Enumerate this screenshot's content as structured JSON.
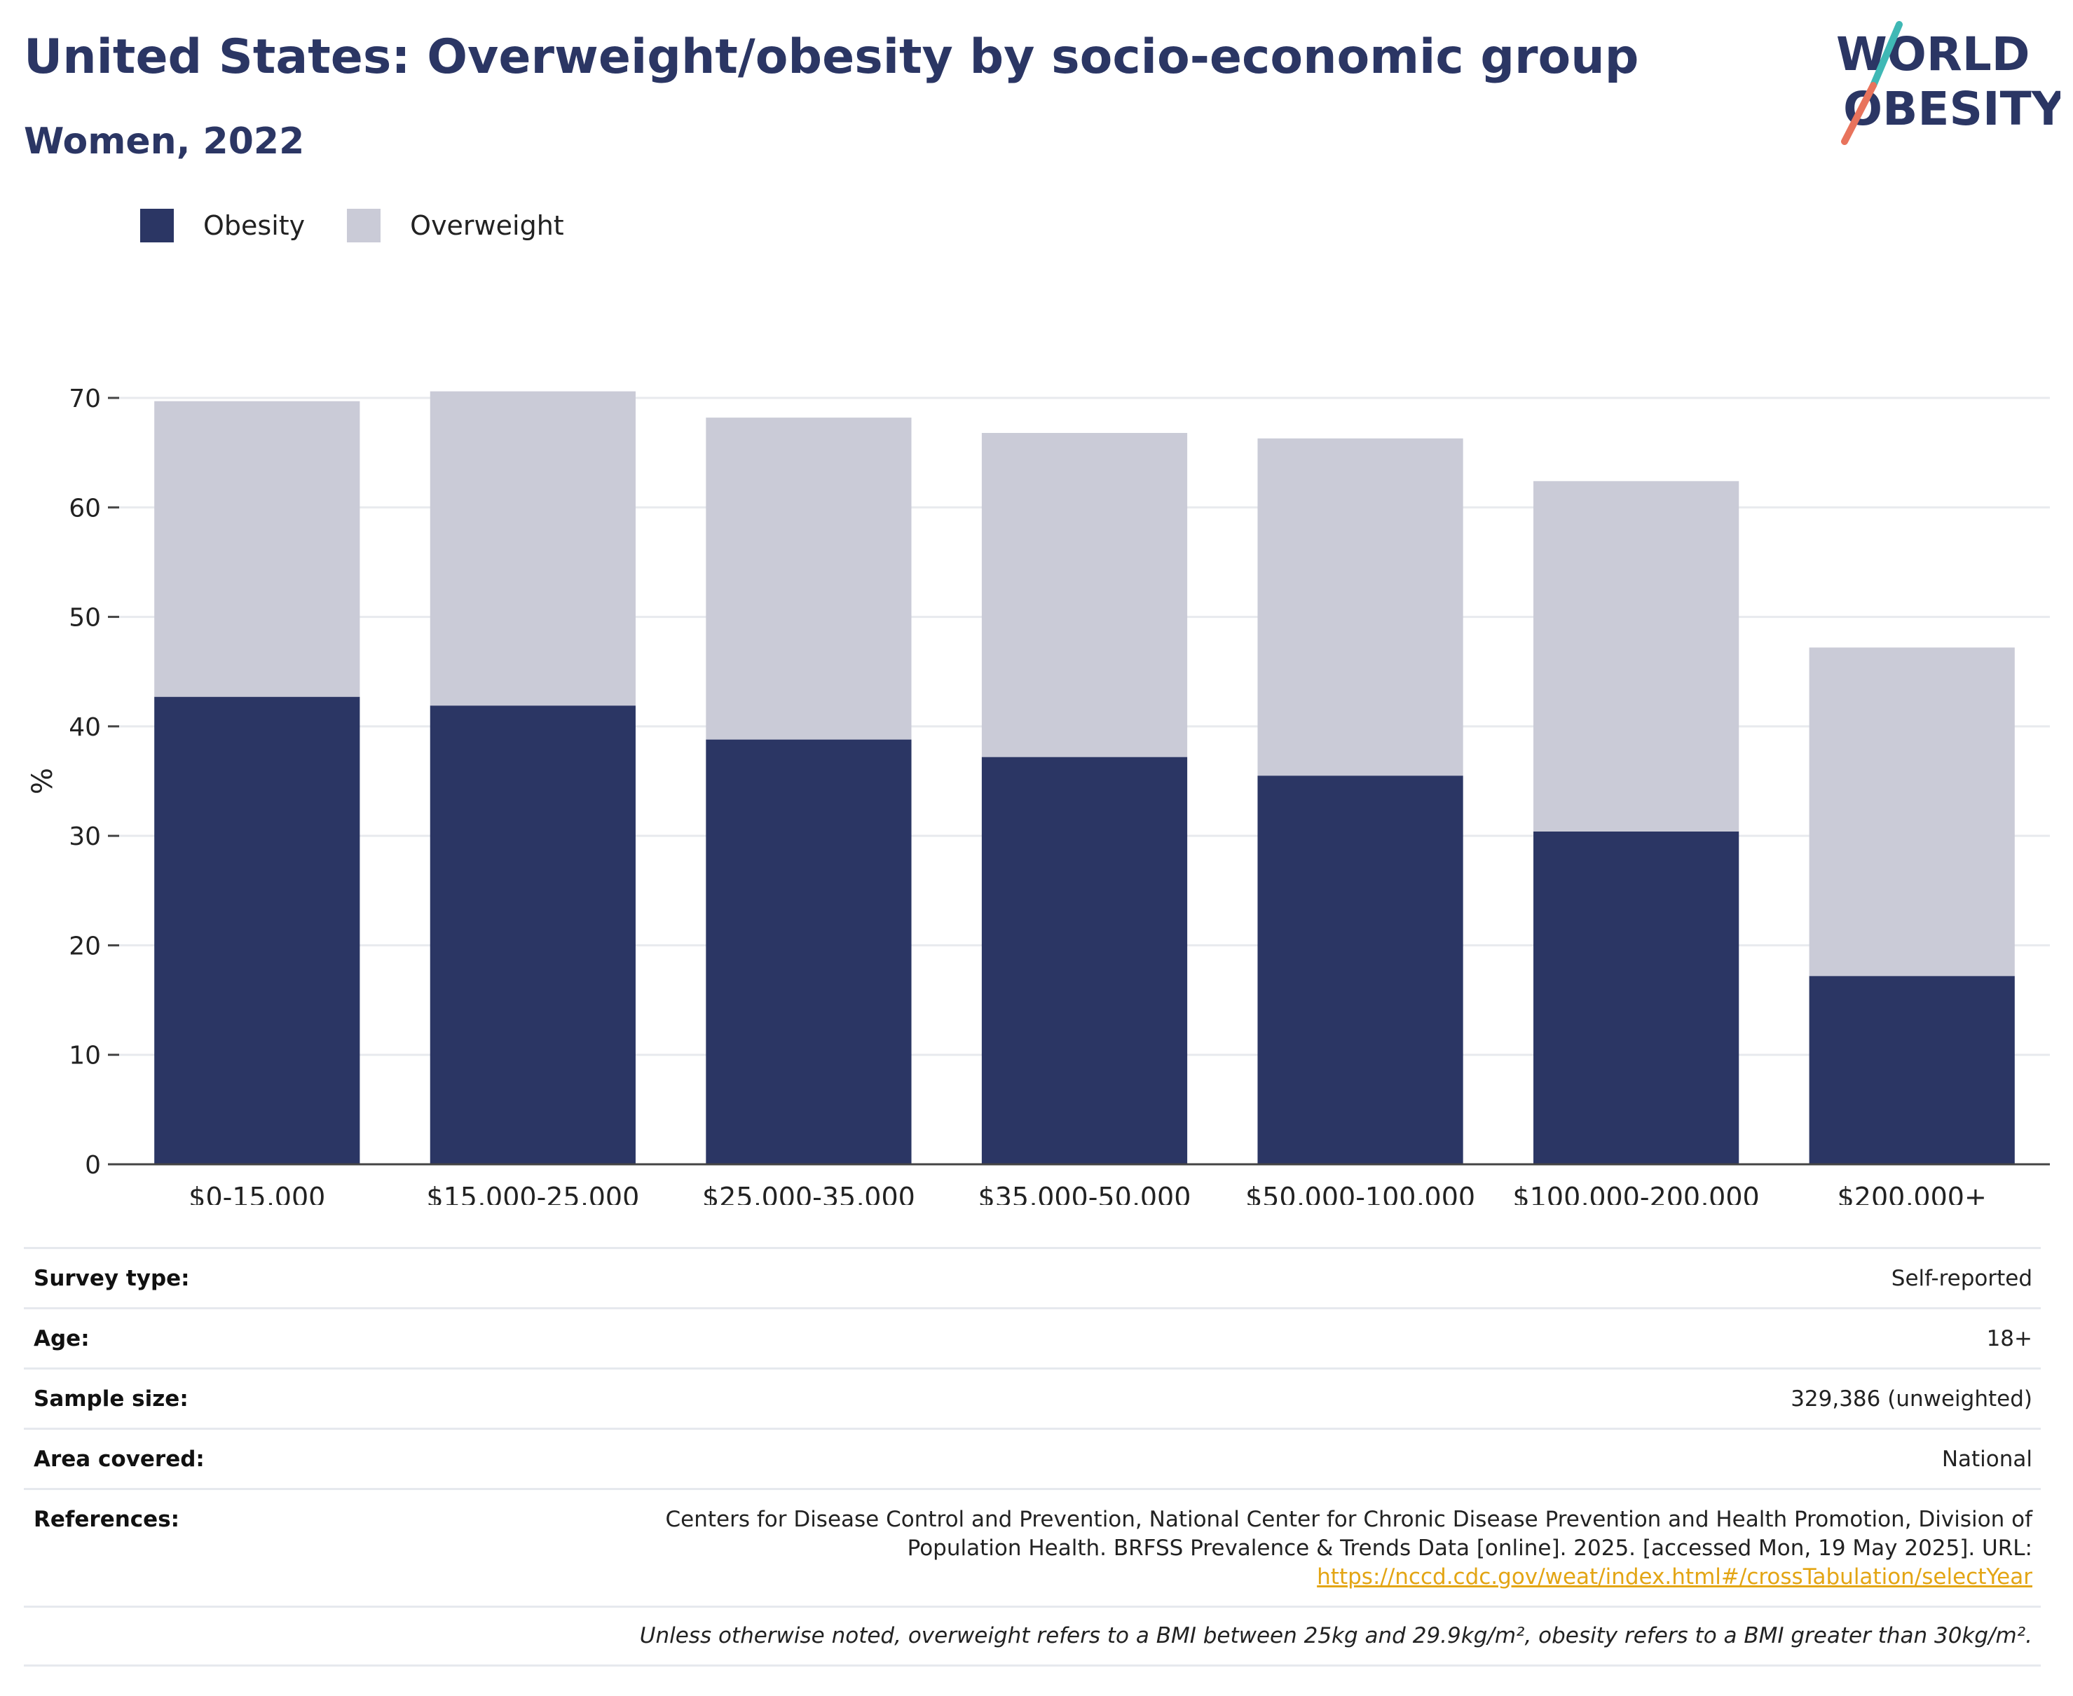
{
  "title": "United States: Overweight/obesity by socio-economic group",
  "subtitle": "Women, 2022",
  "logo": {
    "line1": "WORLD",
    "line2": "OBESITY"
  },
  "colors": {
    "obesity": "#2b3664",
    "overweight": "#cacbd7",
    "title": "#2b3664",
    "link": "#e3a514",
    "logo_teal": "#3fb8b5",
    "logo_coral": "#e8735c"
  },
  "legend": [
    {
      "label": "Obesity",
      "color": "#2b3664"
    },
    {
      "label": "Overweight",
      "color": "#cacbd7"
    }
  ],
  "chart_data": {
    "type": "bar",
    "stacked": true,
    "categories": [
      "$0-15,000",
      "$15,000-25,000",
      "$25,000-35,000",
      "$35,000-50,000",
      "$50,000-100,000",
      "$100,000-200,000",
      "$200,000+"
    ],
    "series": [
      {
        "name": "Obesity",
        "values": [
          42.7,
          41.9,
          38.8,
          37.2,
          35.5,
          30.4,
          17.2
        ]
      },
      {
        "name": "Overweight",
        "values": [
          27.0,
          28.7,
          29.4,
          29.6,
          30.8,
          32.0,
          30.0
        ]
      }
    ],
    "ylabel": "%",
    "ylim": [
      0,
      70
    ],
    "yticks": [
      0,
      10,
      20,
      30,
      40,
      50,
      60,
      70
    ],
    "grid": true,
    "legend_position": "top-left"
  },
  "meta": {
    "survey_type": {
      "label": "Survey type:",
      "value": "Self-reported"
    },
    "age": {
      "label": "Age:",
      "value": "18+"
    },
    "sample_size": {
      "label": "Sample size:",
      "value": "329,386 (unweighted)"
    },
    "area_covered": {
      "label": "Area covered:",
      "value": "National"
    },
    "references": {
      "label": "References:",
      "line1": "Centers for Disease Control and Prevention, National Center for Chronic Disease Prevention and Health Promotion, Division of",
      "line2": "Population Health. BRFSS Prevalence & Trends Data [online]. 2025. [accessed Mon, 19 May 2025]. URL:",
      "url": "https://nccd.cdc.gov/weat/index.html#/crossTabulation/selectYear"
    }
  },
  "footnote": "Unless otherwise noted, overweight refers to a BMI between 25kg and 29.9kg/m², obesity refers to a BMI greater than 30kg/m²."
}
